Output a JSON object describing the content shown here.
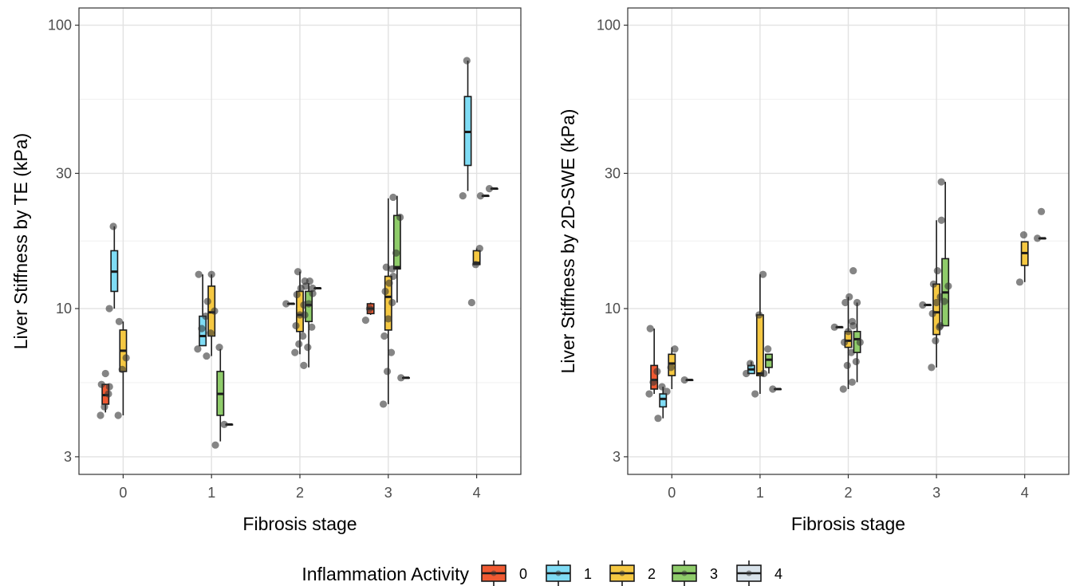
{
  "figure": {
    "legend": {
      "title": "Inflammation Activity",
      "position": "bottom",
      "entries": [
        {
          "label": "0",
          "color": "#f05a32"
        },
        {
          "label": "1",
          "color": "#7fdcf5"
        },
        {
          "label": "2",
          "color": "#f5c842"
        },
        {
          "label": "3",
          "color": "#8fcc6a"
        },
        {
          "label": "4",
          "color": "#d8e2ea"
        }
      ]
    }
  },
  "chart_data": [
    {
      "type": "box",
      "xlabel": "Fibrosis stage",
      "ylabel": "Liver Stiffness by TE (kPa)",
      "y_scale": "log",
      "ylim": [
        2.6,
        115
      ],
      "yticks": [
        "3",
        "10",
        "30",
        "100"
      ],
      "categories": [
        "0",
        "1",
        "2",
        "3",
        "4"
      ],
      "grid": true,
      "series": [
        {
          "name": "0",
          "color": "#f05a32",
          "boxes": [
            {
              "x": "0",
              "min": 4.3,
              "q1": 4.6,
              "median": 4.95,
              "q3": 5.4,
              "max": 5.4,
              "points": [
                4.2,
                4.5,
                5.0,
                5.4,
                5.9,
                5.3
              ]
            },
            {
              "x": "3",
              "min": 9.5,
              "q1": 9.6,
              "median": 10.0,
              "q3": 10.4,
              "max": 10.5,
              "points": [
                9.1,
                10.0
              ]
            }
          ]
        },
        {
          "name": "1",
          "color": "#7fdcf5",
          "boxes": [
            {
              "x": "0",
              "min": 10.0,
              "q1": 11.5,
              "median": 13.5,
              "q3": 16.0,
              "max": 19.5,
              "points": [
                10.0,
                19.5
              ]
            },
            {
              "x": "1",
              "min": 7.4,
              "q1": 7.4,
              "median": 8.0,
              "q3": 9.4,
              "max": 13.2,
              "points": [
                7.2,
                8.5,
                9.4,
                13.2
              ]
            },
            {
              "x": "2",
              "min": 10.4,
              "q1": 10.4,
              "median": 10.4,
              "q3": 10.4,
              "max": 10.4,
              "points": [
                10.4
              ]
            },
            {
              "x": "4",
              "min": 26,
              "q1": 32,
              "median": 42,
              "q3": 56,
              "max": 75,
              "points": [
                25,
                75
              ]
            }
          ]
        },
        {
          "name": "2",
          "color": "#f5c842",
          "boxes": [
            {
              "x": "0",
              "min": 4.2,
              "q1": 6.0,
              "median": 7.1,
              "q3": 8.4,
              "max": 9.0,
              "points": [
                4.2,
                6.1,
                6.7,
                9.0
              ]
            },
            {
              "x": "1",
              "min": 6.8,
              "q1": 8.0,
              "median": 9.7,
              "q3": 12.0,
              "max": 13.2,
              "points": [
                6.8,
                8.2,
                9.8,
                10.6,
                13.2
              ]
            },
            {
              "x": "2",
              "min": 6.9,
              "q1": 8.3,
              "median": 9.5,
              "q3": 11.5,
              "max": 13.5,
              "points": [
                7.0,
                7.5,
                8.0,
                8.7,
                9.5,
                10.3,
                11.2,
                11.8,
                12.5,
                13.5
              ]
            },
            {
              "x": "3",
              "min": 4.6,
              "q1": 8.4,
              "median": 11.0,
              "q3": 13.0,
              "max": 24.5,
              "points": [
                4.6,
                6.0,
                7.0,
                8.0,
                9.2,
                10.5,
                11.5,
                12.3,
                13.0,
                14.0
              ]
            },
            {
              "x": "4",
              "min": 14.3,
              "q1": 14.3,
              "median": 14.5,
              "q3": 16.0,
              "max": 16.3,
              "points": [
                10.5,
                14.3,
                16.3
              ]
            }
          ]
        },
        {
          "name": "3",
          "color": "#8fcc6a",
          "boxes": [
            {
              "x": "1",
              "min": 3.4,
              "q1": 4.2,
              "median": 5.0,
              "q3": 6.0,
              "max": 7.2,
              "points": [
                3.3,
                7.3
              ]
            },
            {
              "x": "2",
              "min": 6.2,
              "q1": 9.0,
              "median": 10.3,
              "q3": 11.5,
              "max": 12.3,
              "points": [
                6.3,
                7.3,
                8.6,
                9.5,
                10.4,
                11.3,
                12.0,
                12.5
              ]
            },
            {
              "x": "3",
              "min": 10.5,
              "q1": 13.8,
              "median": 14.0,
              "q3": 21.3,
              "max": 25.0,
              "points": [
                13.8,
                15.7,
                21.0,
                24.7
              ]
            },
            {
              "x": "4",
              "min": 25.0,
              "q1": 25.0,
              "median": 25.0,
              "q3": 25.0,
              "max": 25.0,
              "points": [
                25.0
              ]
            }
          ]
        },
        {
          "name": "4",
          "color": "#d8e2ea",
          "boxes": [
            {
              "x": "1",
              "min": 3.9,
              "q1": 3.9,
              "median": 3.9,
              "q3": 3.9,
              "max": 3.9,
              "points": [
                3.9
              ]
            },
            {
              "x": "2",
              "min": 11.8,
              "q1": 11.8,
              "median": 11.8,
              "q3": 11.8,
              "max": 11.8,
              "points": [
                11.8
              ]
            },
            {
              "x": "3",
              "min": 5.7,
              "q1": 5.7,
              "median": 5.7,
              "q3": 5.7,
              "max": 5.7,
              "points": [
                5.7
              ]
            },
            {
              "x": "4",
              "min": 26.5,
              "q1": 26.5,
              "median": 26.5,
              "q3": 26.5,
              "max": 26.5,
              "points": [
                26.5
              ]
            }
          ]
        }
      ]
    },
    {
      "type": "box",
      "xlabel": "Fibrosis stage",
      "ylabel": "Liver Stiffness by 2D-SWE (kPa)",
      "y_scale": "log",
      "ylim": [
        2.6,
        115
      ],
      "yticks": [
        "3",
        "10",
        "30",
        "100"
      ],
      "categories": [
        "0",
        "1",
        "2",
        "3",
        "4"
      ],
      "grid": true,
      "series": [
        {
          "name": "0",
          "color": "#f05a32",
          "boxes": [
            {
              "x": "0",
              "min": 5.0,
              "q1": 5.2,
              "median": 5.6,
              "q3": 6.3,
              "max": 8.5,
              "points": [
                5.0,
                5.5,
                6.0,
                8.5
              ]
            }
          ]
        },
        {
          "name": "1",
          "color": "#7fdcf5",
          "boxes": [
            {
              "x": "0",
              "min": 4.1,
              "q1": 4.5,
              "median": 4.8,
              "q3": 5.0,
              "max": 5.3,
              "points": [
                4.1,
                5.3
              ]
            },
            {
              "x": "1",
              "min": 5.9,
              "q1": 5.9,
              "median": 6.1,
              "q3": 6.3,
              "max": 6.5,
              "points": [
                5.9,
                6.4
              ]
            },
            {
              "x": "2",
              "min": 8.6,
              "q1": 8.6,
              "median": 8.6,
              "q3": 8.6,
              "max": 8.6,
              "points": [
                8.6
              ]
            },
            {
              "x": "3",
              "min": 10.3,
              "q1": 10.3,
              "median": 10.3,
              "q3": 10.3,
              "max": 10.3,
              "points": [
                10.3
              ]
            }
          ]
        },
        {
          "name": "2",
          "color": "#f5c842",
          "boxes": [
            {
              "x": "0",
              "min": 5.2,
              "q1": 5.8,
              "median": 6.4,
              "q3": 6.9,
              "max": 7.3,
              "points": [
                5.1,
                6.2,
                7.2
              ]
            },
            {
              "x": "1",
              "min": 5.0,
              "q1": 5.8,
              "median": 5.9,
              "q3": 9.5,
              "max": 13.2,
              "points": [
                5.0,
                9.5,
                13.2
              ]
            },
            {
              "x": "2",
              "min": 5.2,
              "q1": 7.3,
              "median": 7.7,
              "q3": 8.3,
              "max": 11.0,
              "points": [
                5.2,
                6.3,
                7.0,
                7.6,
                8.3,
                9.0,
                10.5,
                11.0,
                13.6
              ]
            },
            {
              "x": "3",
              "min": 6.2,
              "q1": 8.1,
              "median": 9.7,
              "q3": 12.2,
              "max": 20.5,
              "points": [
                6.2,
                7.7,
                8.6,
                9.6,
                10.5,
                11.0,
                12.2,
                13.6,
                20.5
              ]
            },
            {
              "x": "4",
              "min": 12.4,
              "q1": 14.2,
              "median": 15.7,
              "q3": 17.2,
              "max": 17.2,
              "points": [
                12.4,
                18.2
              ]
            }
          ]
        },
        {
          "name": "3",
          "color": "#8fcc6a",
          "boxes": [
            {
              "x": "1",
              "min": 5.9,
              "q1": 6.2,
              "median": 6.6,
              "q3": 6.9,
              "max": 6.9,
              "points": [
                5.9,
                7.2
              ]
            },
            {
              "x": "2",
              "min": 5.5,
              "q1": 7.0,
              "median": 7.8,
              "q3": 8.3,
              "max": 10.5,
              "points": [
                5.5,
                6.5,
                7.6,
                8.7,
                10.5
              ]
            },
            {
              "x": "3",
              "min": 8.7,
              "q1": 8.7,
              "median": 11.4,
              "q3": 15.0,
              "max": 28.0,
              "points": [
                8.7,
                10.6,
                12.0,
                28.0
              ]
            }
          ]
        },
        {
          "name": "4",
          "color": "#d8e2ea",
          "boxes": [
            {
              "x": "0",
              "min": 5.6,
              "q1": 5.6,
              "median": 5.6,
              "q3": 5.6,
              "max": 5.6,
              "points": [
                5.6
              ]
            },
            {
              "x": "1",
              "min": 5.2,
              "q1": 5.2,
              "median": 5.2,
              "q3": 5.2,
              "max": 5.2,
              "points": [
                5.2
              ]
            },
            {
              "x": "4",
              "min": 17.7,
              "q1": 17.7,
              "median": 17.7,
              "q3": 17.7,
              "max": 17.7,
              "points": [
                17.7,
                22.0
              ]
            }
          ]
        }
      ]
    }
  ]
}
